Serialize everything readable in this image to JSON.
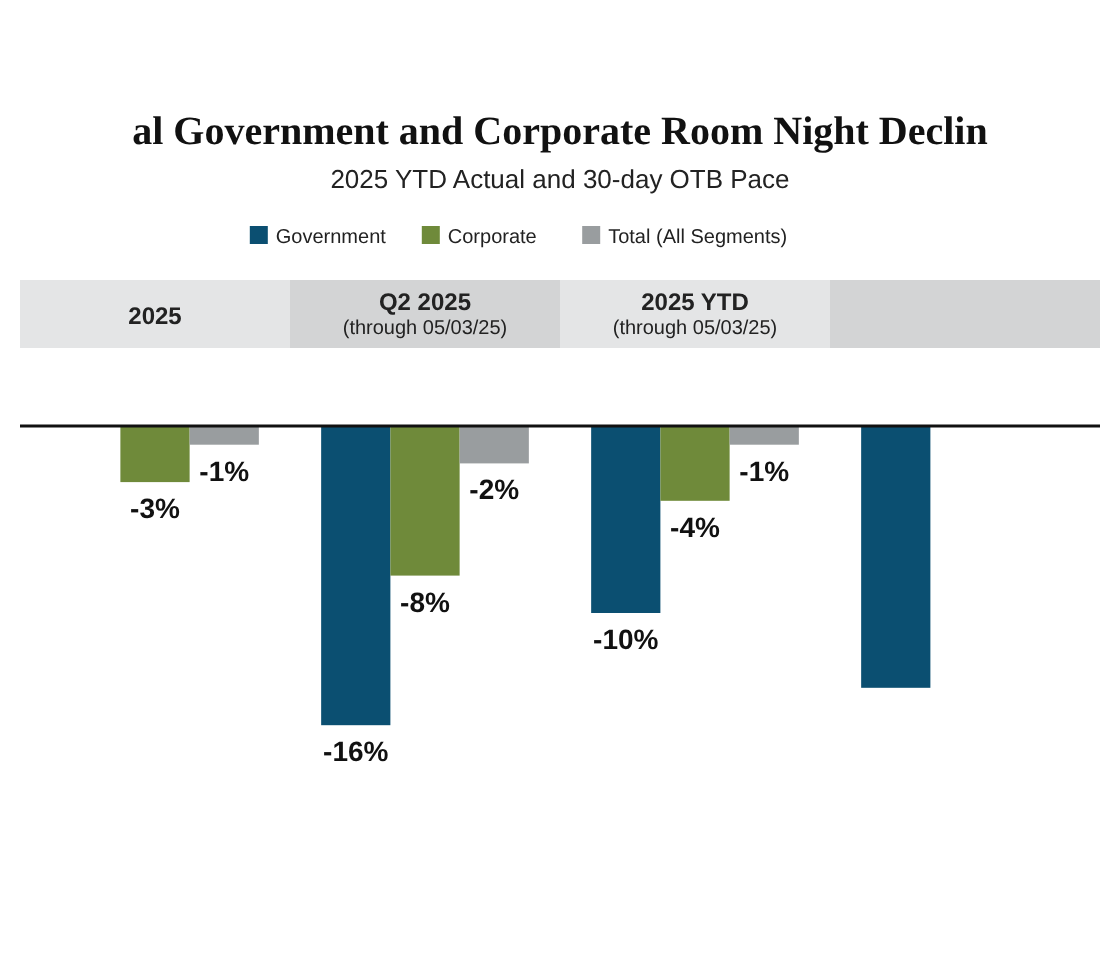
{
  "chart_data": {
    "type": "bar",
    "title": "al Government and Corporate Room Night Declin",
    "subtitle": "2025 YTD Actual and 30-day OTB Pace",
    "categories": [
      "2025",
      "Q2 2025\n(through 05/03/25)",
      "2025 YTD\n(through 05/03/25)",
      null
    ],
    "series": [
      {
        "name": "Government",
        "color": "#0b4f71",
        "values": [
          null,
          -16,
          -10,
          -14
        ],
        "value_labels": [
          null,
          "-16%",
          "-10%",
          null
        ]
      },
      {
        "name": "Corporate",
        "color": "#6f8a3a",
        "values": [
          -3,
          -8,
          -4,
          null
        ],
        "value_labels": [
          "-3%",
          "-8%",
          "-4%",
          null
        ]
      },
      {
        "name": "Total (All Segments)",
        "color": "#999d9f",
        "values": [
          -1,
          -2,
          -1,
          null
        ],
        "value_labels": [
          "-1%",
          "-2%",
          "-1%",
          null
        ]
      }
    ],
    "legend": "top"
  }
}
